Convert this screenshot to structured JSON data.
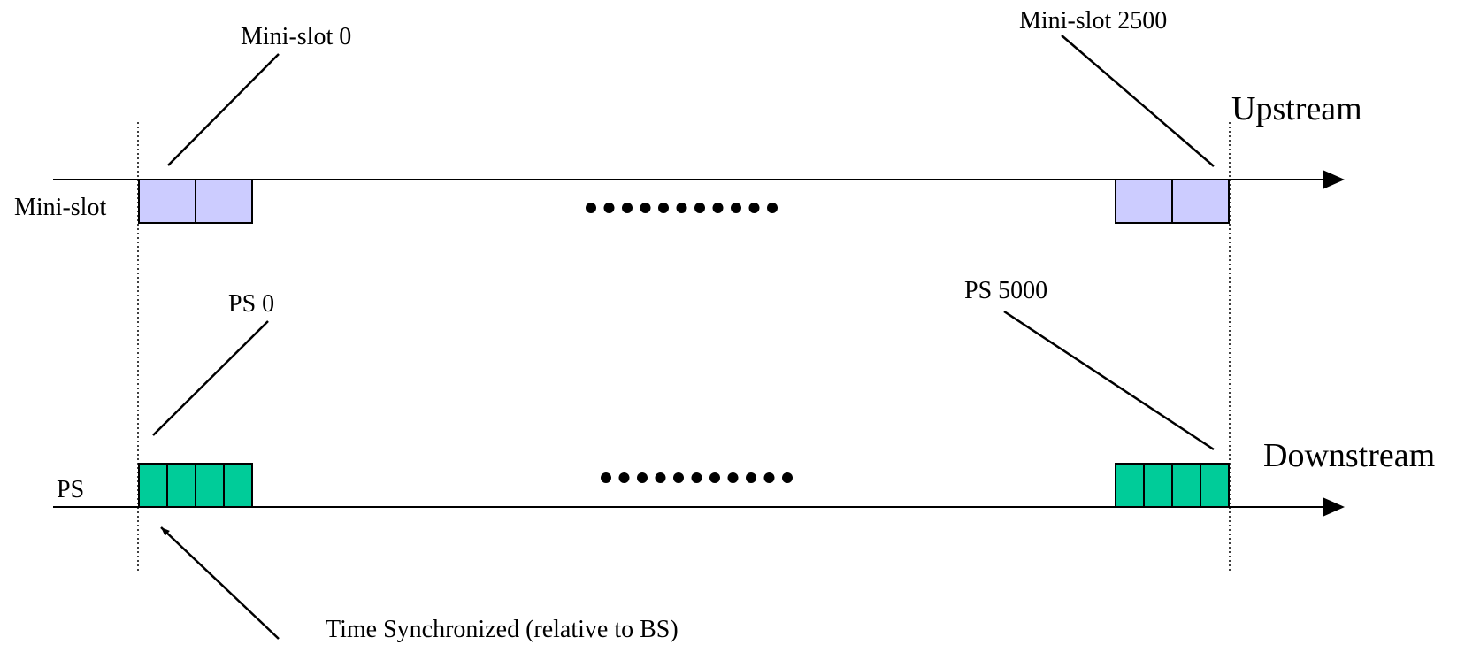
{
  "labels": {
    "minislot_0": "Mini-slot 0",
    "minislot_2500": "Mini-slot 2500",
    "upstream": "Upstream",
    "minislot_row": "Mini-slot",
    "ps_0": "PS 0",
    "ps_5000": "PS 5000",
    "downstream": "Downstream",
    "ps_row": "PS",
    "time_sync": "Time Synchronized (relative to BS)"
  },
  "rows": {
    "upstream": {
      "slots_per_group": 2,
      "fill": "#ccccff"
    },
    "downstream": {
      "slots_per_group": 4,
      "fill": "#00cc99"
    }
  },
  "ellipsis_dots": 11
}
